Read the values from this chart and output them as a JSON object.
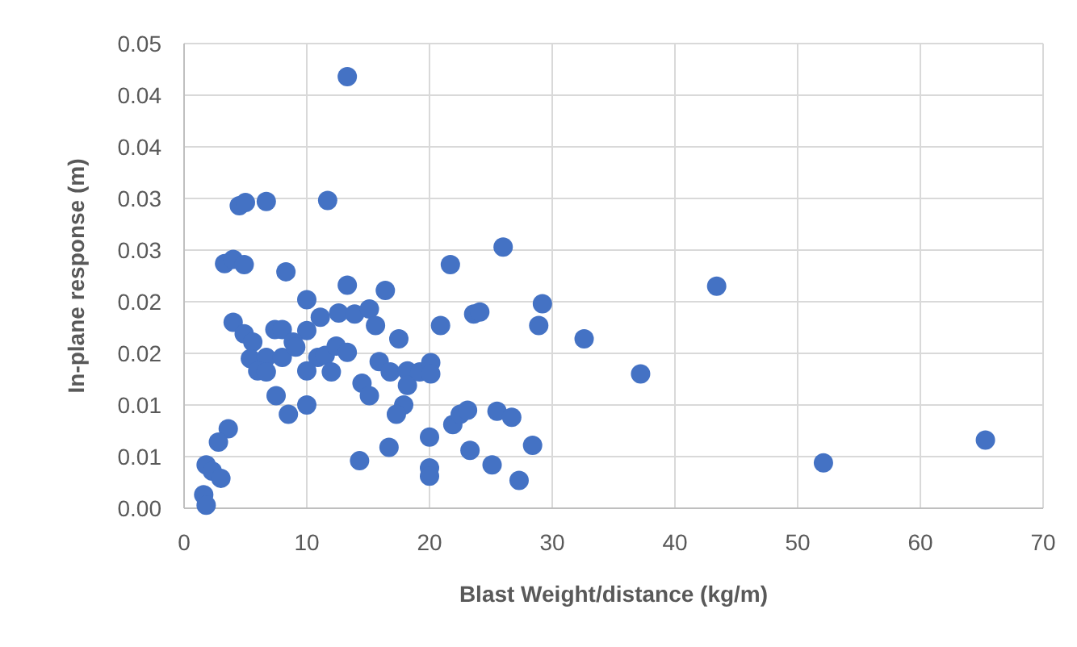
{
  "chart_data": {
    "type": "scatter",
    "xlabel": "Blast Weight/distance (kg/m)",
    "ylabel": "In-plane response (m)",
    "xlim": [
      0,
      70
    ],
    "xticks": [
      0,
      10,
      20,
      30,
      40,
      50,
      60,
      70
    ],
    "ylim": [
      0,
      0.045
    ],
    "yticks": [
      {
        "value": 0,
        "label": "0.00"
      },
      {
        "value": 0.005,
        "label": "0.01"
      },
      {
        "value": 0.01,
        "label": "0.01"
      },
      {
        "value": 0.015,
        "label": "0.02"
      },
      {
        "value": 0.02,
        "label": "0.02"
      },
      {
        "value": 0.025,
        "label": "0.03"
      },
      {
        "value": 0.03,
        "label": "0.03"
      },
      {
        "value": 0.035,
        "label": "0.04"
      },
      {
        "value": 0.04,
        "label": "0.04"
      },
      {
        "value": 0.045,
        "label": "0.05"
      }
    ],
    "grid": true,
    "marker": "circle",
    "series": [
      {
        "color": "#4472c4",
        "x": [
          13.3,
          4.5,
          5.0,
          6.7,
          11.7,
          3.3,
          4.0,
          4.9,
          8.3,
          21.7,
          13.3,
          16.4,
          10.0,
          11.1,
          12.6,
          13.9,
          15.1,
          15.6,
          4.0,
          4.9,
          5.6,
          7.4,
          8.0,
          10.0,
          8.9,
          17.5,
          20.9,
          23.6,
          24.1,
          5.4,
          6.7,
          6.0,
          6.7,
          8.0,
          9.1,
          10.9,
          11.5,
          12.4,
          13.3,
          10.0,
          12.0,
          15.9,
          16.8,
          18.2,
          18.2,
          19.2,
          20.1,
          20.1,
          14.5,
          15.1,
          7.5,
          8.5,
          10.0,
          17.9,
          17.3,
          3.6,
          2.8,
          1.8,
          2.3,
          3.0,
          1.6,
          1.8,
          14.3,
          16.7,
          20.0,
          20.0,
          20.0,
          21.9,
          22.5,
          23.1,
          23.3,
          29.2,
          28.9,
          32.6,
          43.4,
          37.2,
          25.5,
          26.7,
          28.4,
          25.1,
          27.3,
          52.1,
          65.3,
          26.0
        ],
        "values": [
          0.0418,
          0.0293,
          0.0296,
          0.0297,
          0.0298,
          0.0237,
          0.0241,
          0.0236,
          0.0229,
          0.0236,
          0.0216,
          0.0211,
          0.0202,
          0.0185,
          0.0189,
          0.0188,
          0.0193,
          0.0177,
          0.018,
          0.0169,
          0.0161,
          0.0173,
          0.0173,
          0.0172,
          0.0161,
          0.0164,
          0.0177,
          0.0188,
          0.019,
          0.0145,
          0.0146,
          0.0133,
          0.0132,
          0.0146,
          0.0156,
          0.0146,
          0.0148,
          0.0157,
          0.0151,
          0.0133,
          0.0132,
          0.0142,
          0.0132,
          0.0133,
          0.0119,
          0.0132,
          0.0141,
          0.013,
          0.0121,
          0.0109,
          0.0109,
          0.0091,
          0.01,
          0.01,
          0.0091,
          0.0077,
          0.0064,
          0.0042,
          0.0036,
          0.0029,
          0.0013,
          0.0003,
          0.0046,
          0.0059,
          0.0069,
          0.0039,
          0.0031,
          0.0081,
          0.0091,
          0.0095,
          0.0056,
          0.0198,
          0.0177,
          0.0164,
          0.0215,
          0.013,
          0.0094,
          0.0088,
          0.0061,
          0.0042,
          0.0027,
          0.0044,
          0.0066,
          0.0253
        ]
      }
    ]
  }
}
